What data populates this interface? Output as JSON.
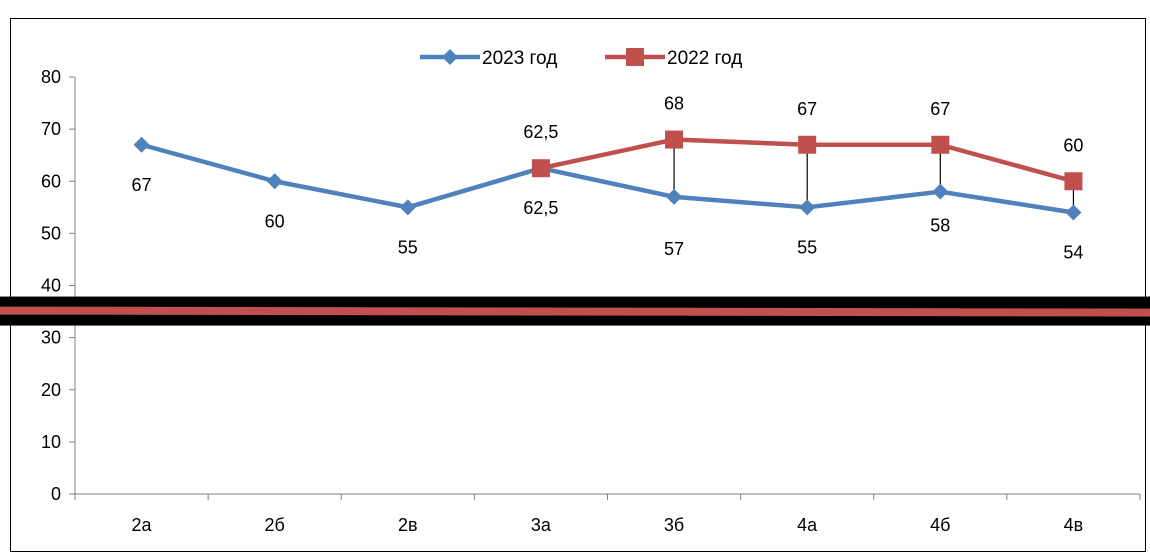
{
  "chart_data": {
    "type": "line",
    "categories": [
      "2а",
      "2б",
      "2в",
      "3а",
      "3б",
      "4а",
      "4б",
      "4в"
    ],
    "series": [
      {
        "name": "2023 год",
        "color": "#4F81BD",
        "marker": "diamond",
        "values": [
          67,
          60,
          55,
          62.5,
          57,
          55,
          58,
          54
        ],
        "labels": [
          "67",
          "60",
          "55",
          "62,5",
          "57",
          "55",
          "58",
          "54"
        ]
      },
      {
        "name": "2022 год",
        "color": "#C0504D",
        "marker": "square",
        "values": [
          null,
          null,
          null,
          62.5,
          68,
          67,
          67,
          60
        ],
        "labels": [
          "",
          "",
          "",
          "62,5",
          "68",
          "67",
          "67",
          "60"
        ]
      }
    ],
    "yticks": [
      "0",
      "10",
      "20",
      "30",
      "40",
      "50",
      "60",
      "70",
      "80"
    ],
    "ylim": [
      0,
      80
    ],
    "legend_position": "top",
    "threshold_band": {
      "value": 35,
      "band_color": "#000000",
      "line_color": "#C0504D"
    }
  }
}
